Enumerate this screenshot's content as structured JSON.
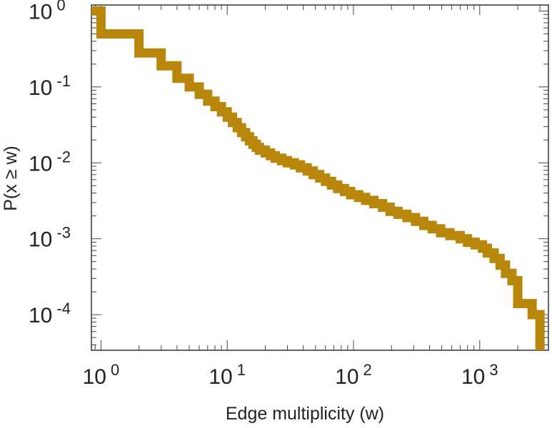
{
  "chart_data": {
    "type": "line",
    "title": "",
    "xlabel": "Edge multiplicity (w)",
    "ylabel": "P(x ≥ w)",
    "x_scale": "log",
    "y_scale": "log",
    "xlim": [
      0.84,
      3500
    ],
    "ylim": [
      3.4e-05,
      1.2
    ],
    "grid": false,
    "legend": "none",
    "line_color": "#b8860b",
    "x_ticks": [
      {
        "base": "10",
        "exp": "0",
        "value": 1
      },
      {
        "base": "10",
        "exp": "1",
        "value": 10
      },
      {
        "base": "10",
        "exp": "2",
        "value": 100
      },
      {
        "base": "10",
        "exp": "3",
        "value": 1000
      }
    ],
    "y_ticks": [
      {
        "base": "10",
        "exp": "0",
        "value": 1
      },
      {
        "base": "10",
        "exp": "-1",
        "value": 0.1
      },
      {
        "base": "10",
        "exp": "-2",
        "value": 0.01
      },
      {
        "base": "10",
        "exp": "-3",
        "value": 0.001
      },
      {
        "base": "10",
        "exp": "-4",
        "value": 0.0001
      }
    ],
    "series": [
      {
        "points": [
          [
            0.84,
            1.0
          ],
          [
            1,
            1.0
          ],
          [
            1,
            0.5
          ],
          [
            2,
            0.5
          ],
          [
            2,
            0.28
          ],
          [
            3,
            0.28
          ],
          [
            3,
            0.19
          ],
          [
            4,
            0.19
          ],
          [
            4,
            0.13
          ],
          [
            5,
            0.13
          ],
          [
            5,
            0.1
          ],
          [
            6,
            0.1
          ],
          [
            6,
            0.08
          ],
          [
            7,
            0.08
          ],
          [
            7,
            0.065
          ],
          [
            8,
            0.065
          ],
          [
            8,
            0.055
          ],
          [
            9,
            0.055
          ],
          [
            9,
            0.047
          ],
          [
            10,
            0.047
          ],
          [
            10,
            0.04
          ],
          [
            11,
            0.04
          ],
          [
            11,
            0.034
          ],
          [
            12,
            0.034
          ],
          [
            12,
            0.029
          ],
          [
            13,
            0.029
          ],
          [
            13,
            0.025
          ],
          [
            14,
            0.025
          ],
          [
            14,
            0.022
          ],
          [
            15,
            0.022
          ],
          [
            15,
            0.0195
          ],
          [
            16,
            0.0195
          ],
          [
            16,
            0.0175
          ],
          [
            17,
            0.0175
          ],
          [
            17,
            0.016
          ],
          [
            18,
            0.016
          ],
          [
            18,
            0.0147
          ],
          [
            20,
            0.0147
          ],
          [
            20,
            0.0135
          ],
          [
            22,
            0.0135
          ],
          [
            22,
            0.0124
          ],
          [
            24,
            0.0124
          ],
          [
            24,
            0.0115
          ],
          [
            27,
            0.0115
          ],
          [
            27,
            0.0107
          ],
          [
            30,
            0.0107
          ],
          [
            30,
            0.01
          ],
          [
            34,
            0.01
          ],
          [
            34,
            0.0094
          ],
          [
            38,
            0.0094
          ],
          [
            38,
            0.0086
          ],
          [
            43,
            0.0086
          ],
          [
            43,
            0.0078
          ],
          [
            48,
            0.0078
          ],
          [
            48,
            0.007
          ],
          [
            54,
            0.007
          ],
          [
            54,
            0.0063
          ],
          [
            60,
            0.0063
          ],
          [
            60,
            0.0057
          ],
          [
            67,
            0.0057
          ],
          [
            67,
            0.0051
          ],
          [
            75,
            0.0051
          ],
          [
            75,
            0.0046
          ],
          [
            85,
            0.0046
          ],
          [
            85,
            0.0042
          ],
          [
            95,
            0.0042
          ],
          [
            95,
            0.0038
          ],
          [
            110,
            0.0038
          ],
          [
            110,
            0.0035
          ],
          [
            125,
            0.0035
          ],
          [
            125,
            0.0032
          ],
          [
            145,
            0.0032
          ],
          [
            145,
            0.0029
          ],
          [
            170,
            0.0029
          ],
          [
            170,
            0.0026
          ],
          [
            195,
            0.0026
          ],
          [
            195,
            0.0023
          ],
          [
            225,
            0.0023
          ],
          [
            225,
            0.0021
          ],
          [
            265,
            0.0021
          ],
          [
            265,
            0.0019
          ],
          [
            310,
            0.0019
          ],
          [
            310,
            0.0017
          ],
          [
            360,
            0.0017
          ],
          [
            360,
            0.0015
          ],
          [
            420,
            0.0015
          ],
          [
            420,
            0.00135
          ],
          [
            490,
            0.00135
          ],
          [
            490,
            0.0012
          ],
          [
            580,
            0.0012
          ],
          [
            580,
            0.0011
          ],
          [
            700,
            0.0011
          ],
          [
            700,
            0.001
          ],
          [
            800,
            0.001
          ],
          [
            800,
            0.0009
          ],
          [
            920,
            0.0009
          ],
          [
            920,
            0.00083
          ],
          [
            1050,
            0.00083
          ],
          [
            1050,
            0.00075
          ],
          [
            1150,
            0.00075
          ],
          [
            1150,
            0.00065
          ],
          [
            1300,
            0.00065
          ],
          [
            1300,
            0.00055
          ],
          [
            1450,
            0.00055
          ],
          [
            1450,
            0.00045
          ],
          [
            1600,
            0.00045
          ],
          [
            1600,
            0.00035
          ],
          [
            1800,
            0.00035
          ],
          [
            1800,
            0.00028
          ],
          [
            2000,
            0.00028
          ],
          [
            2000,
            0.00014
          ],
          [
            2600,
            0.00014
          ],
          [
            2600,
            0.0001
          ],
          [
            3000,
            0.0001
          ],
          [
            3000,
            5e-05
          ],
          [
            3000,
            3.4e-05
          ]
        ]
      }
    ]
  }
}
